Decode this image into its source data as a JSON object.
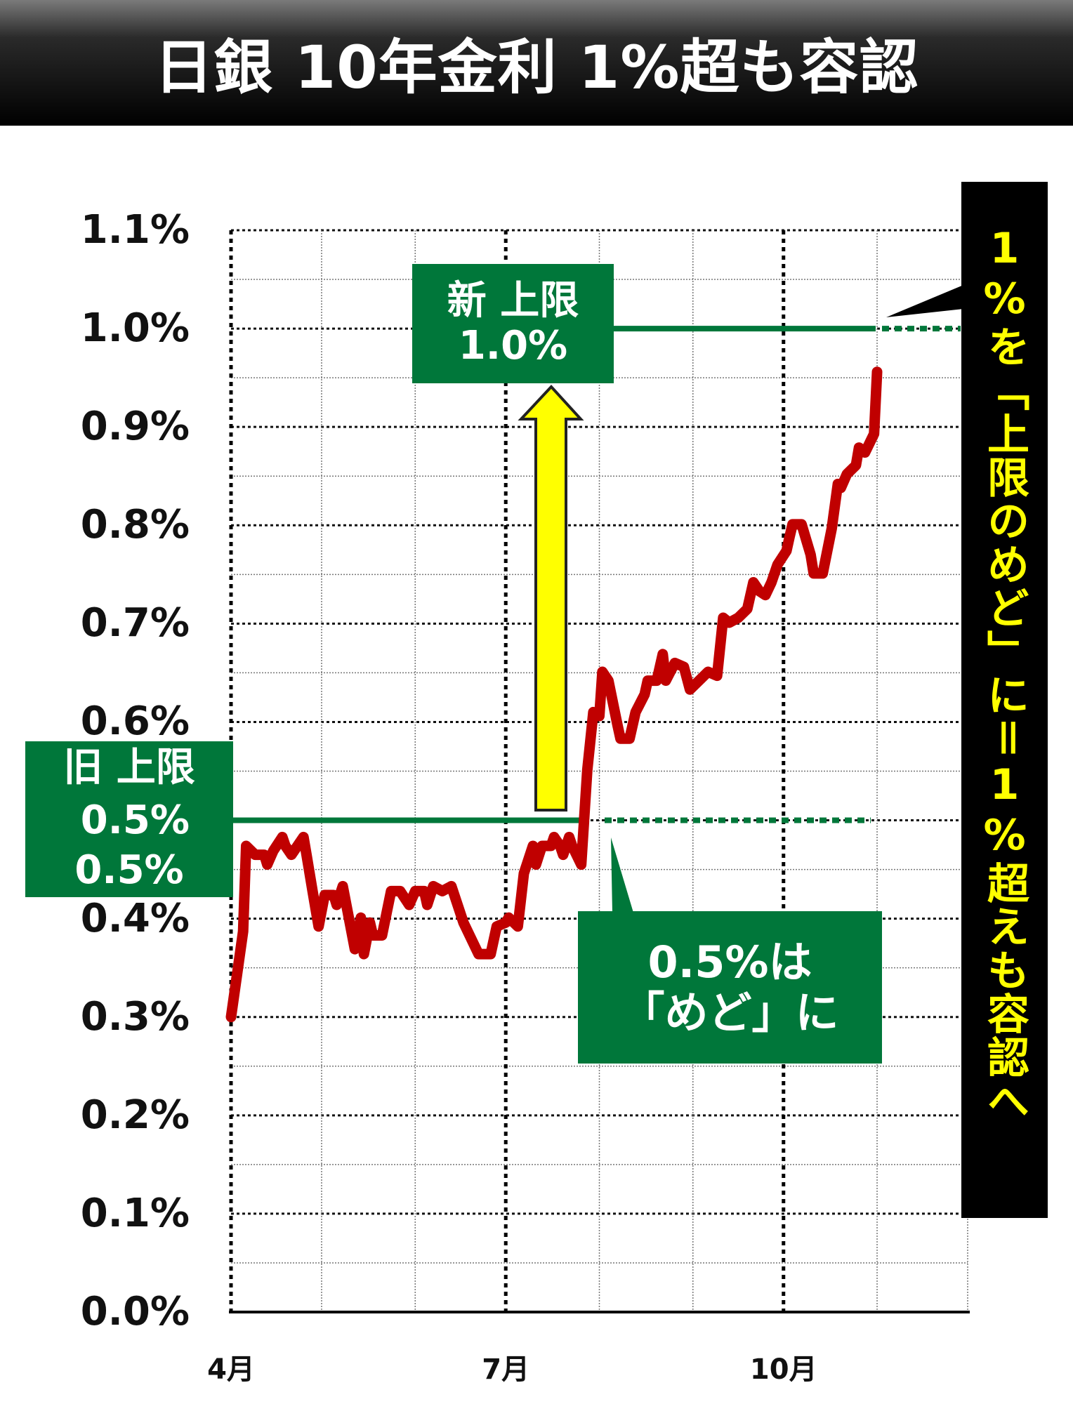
{
  "title": "日銀 10年金利 1%超も容認",
  "colors": {
    "line": "#c00000",
    "annotation_green": "#00773a",
    "arrow": "#ffff00",
    "side_panel": "#000000",
    "side_text": "#ffff00"
  },
  "annotations": {
    "new_limit": {
      "line1": "新 上限",
      "line2": "1.0%",
      "value": 1.0
    },
    "old_limit": {
      "line1": "旧 上限",
      "line2": "0.5%",
      "value": 0.5
    },
    "old_note": {
      "line1": "0.5%は",
      "line2": "「めど」に"
    },
    "side_note": "1%を「上限のめど」に＝1%超えも容認へ",
    "arrow": "arrow-up-icon"
  },
  "chart_data": {
    "type": "line",
    "title": "日銀 10年金利 1%超も容認",
    "xlabel": "",
    "ylabel": "",
    "xlim": [
      "04-01",
      "12-01"
    ],
    "ylim": [
      0,
      1.1
    ],
    "grid": true,
    "x_ticks": [
      {
        "at": "04-01",
        "label": "4月"
      },
      {
        "at": "07-01",
        "label": "7月"
      },
      {
        "at": "10-01",
        "label": "10月"
      }
    ],
    "y_ticks": [
      "1.1%",
      "1.0%",
      "0.9%",
      "0.8%",
      "0.7%",
      "0.6%",
      "0.5%",
      "0.4%",
      "0.3%",
      "0.2%",
      "0.1%",
      "0.0%"
    ],
    "series": [
      {
        "x": [
          "04-01",
          "04-05",
          "04-06",
          "04-09",
          "04-12",
          "04-13",
          "04-15",
          "04-18",
          "04-19",
          "04-21",
          "04-23",
          "04-25",
          "04-26",
          "04-28",
          "04-30",
          "05-02",
          "05-05",
          "05-06",
          "05-08",
          "05-10",
          "05-12",
          "05-14",
          "05-15",
          "05-17",
          "05-18",
          "05-21",
          "05-24",
          "05-27",
          "05-30",
          "06-01",
          "06-04",
          "06-05",
          "06-07",
          "06-10",
          "06-13",
          "06-17",
          "06-22",
          "06-26",
          "06-28",
          "07-01",
          "07-02",
          "07-05",
          "07-07",
          "07-10",
          "07-11",
          "07-13",
          "07-16",
          "07-17",
          "07-19",
          "07-20",
          "07-22",
          "07-23",
          "07-26",
          "07-28",
          "07-30",
          "08-01",
          "08-02",
          "08-04",
          "08-07",
          "08-08",
          "08-11",
          "08-13",
          "08-16",
          "08-17",
          "08-20",
          "08-22",
          "08-23",
          "08-26",
          "08-29",
          "08-31",
          "09-03",
          "09-06",
          "09-09",
          "09-11",
          "09-13",
          "09-16",
          "09-19",
          "09-21",
          "09-23",
          "09-25",
          "09-27",
          "09-29",
          "10-02",
          "10-03",
          "10-04",
          "10-07",
          "10-10",
          "10-11",
          "10-14",
          "10-17",
          "10-19",
          "10-20",
          "10-22",
          "10-25",
          "10-26",
          "10-28",
          "10-31",
          "11-01"
        ],
        "values": [
          0.3,
          0.387,
          0.474,
          0.465,
          0.465,
          0.455,
          0.469,
          0.483,
          0.474,
          0.465,
          0.474,
          0.483,
          0.465,
          0.428,
          0.392,
          0.424,
          0.424,
          0.414,
          0.433,
          0.401,
          0.369,
          0.401,
          0.364,
          0.396,
          0.383,
          0.383,
          0.428,
          0.428,
          0.414,
          0.428,
          0.428,
          0.414,
          0.433,
          0.428,
          0.433,
          0.396,
          0.364,
          0.364,
          0.392,
          0.396,
          0.401,
          0.392,
          0.446,
          0.474,
          0.455,
          0.474,
          0.474,
          0.483,
          0.474,
          0.465,
          0.483,
          0.474,
          0.455,
          0.551,
          0.61,
          0.606,
          0.651,
          0.642,
          0.597,
          0.583,
          0.583,
          0.61,
          0.628,
          0.642,
          0.642,
          0.669,
          0.642,
          0.66,
          0.656,
          0.633,
          0.642,
          0.651,
          0.647,
          0.706,
          0.701,
          0.706,
          0.715,
          0.742,
          0.733,
          0.729,
          0.742,
          0.76,
          0.774,
          0.788,
          0.801,
          0.801,
          0.77,
          0.751,
          0.751,
          0.797,
          0.842,
          0.838,
          0.852,
          0.861,
          0.879,
          0.874,
          0.893,
          0.956
        ]
      }
    ]
  }
}
